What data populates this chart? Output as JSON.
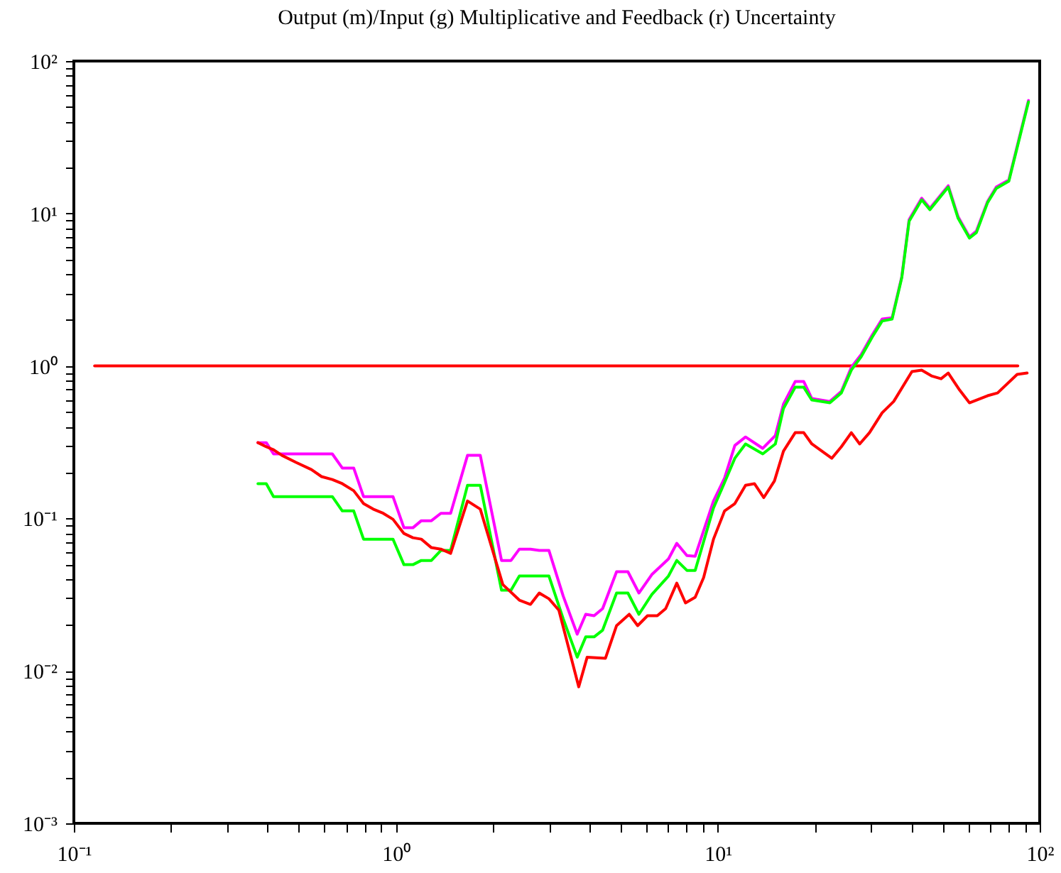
{
  "chart_data": {
    "type": "line",
    "title": "Output (m)/Input (g) Multiplicative and Feedback (r) Uncertainty",
    "log": "xy",
    "grid": false,
    "marker": "none",
    "line_style": "solid",
    "xlim": [
      0.1,
      100
    ],
    "ylim": [
      0.001,
      100
    ],
    "xticks": [
      {
        "value": 0.1,
        "label": "10⁻¹"
      },
      {
        "value": 0.2,
        "label": null
      },
      {
        "value": 0.3,
        "label": null
      },
      {
        "value": 0.4,
        "label": null
      },
      {
        "value": 0.5,
        "label": null
      },
      {
        "value": 0.6,
        "label": null
      },
      {
        "value": 0.7,
        "label": null
      },
      {
        "value": 0.8,
        "label": null
      },
      {
        "value": 0.9,
        "label": null
      },
      {
        "value": 1,
        "label": "10⁰"
      },
      {
        "value": 2,
        "label": null
      },
      {
        "value": 3,
        "label": null
      },
      {
        "value": 4,
        "label": null
      },
      {
        "value": 5,
        "label": null
      },
      {
        "value": 6,
        "label": null
      },
      {
        "value": 7,
        "label": null
      },
      {
        "value": 8,
        "label": null
      },
      {
        "value": 9,
        "label": null
      },
      {
        "value": 10,
        "label": "10¹"
      },
      {
        "value": 20,
        "label": null
      },
      {
        "value": 30,
        "label": null
      },
      {
        "value": 40,
        "label": null
      },
      {
        "value": 50,
        "label": null
      },
      {
        "value": 60,
        "label": null
      },
      {
        "value": 70,
        "label": null
      },
      {
        "value": 80,
        "label": null
      },
      {
        "value": 90,
        "label": null
      },
      {
        "value": 100,
        "label": "10²"
      }
    ],
    "yticks": [
      {
        "value": 0.001,
        "label": "10⁻³"
      },
      {
        "value": 0.002,
        "label": null
      },
      {
        "value": 0.003,
        "label": null
      },
      {
        "value": 0.004,
        "label": null
      },
      {
        "value": 0.005,
        "label": null
      },
      {
        "value": 0.006,
        "label": null
      },
      {
        "value": 0.007,
        "label": null
      },
      {
        "value": 0.008,
        "label": null
      },
      {
        "value": 0.009,
        "label": null
      },
      {
        "value": 0.01,
        "label": "10⁻²"
      },
      {
        "value": 0.02,
        "label": null
      },
      {
        "value": 0.03,
        "label": null
      },
      {
        "value": 0.04,
        "label": null
      },
      {
        "value": 0.05,
        "label": null
      },
      {
        "value": 0.06,
        "label": null
      },
      {
        "value": 0.07,
        "label": null
      },
      {
        "value": 0.08,
        "label": null
      },
      {
        "value": 0.09,
        "label": null
      },
      {
        "value": 0.1,
        "label": "10⁻¹"
      },
      {
        "value": 0.2,
        "label": null
      },
      {
        "value": 0.3,
        "label": null
      },
      {
        "value": 0.4,
        "label": null
      },
      {
        "value": 0.5,
        "label": null
      },
      {
        "value": 0.6,
        "label": null
      },
      {
        "value": 0.7,
        "label": null
      },
      {
        "value": 0.8,
        "label": null
      },
      {
        "value": 0.9,
        "label": null
      },
      {
        "value": 1,
        "label": "10⁰"
      },
      {
        "value": 2,
        "label": null
      },
      {
        "value": 3,
        "label": null
      },
      {
        "value": 4,
        "label": null
      },
      {
        "value": 5,
        "label": null
      },
      {
        "value": 6,
        "label": null
      },
      {
        "value": 7,
        "label": null
      },
      {
        "value": 8,
        "label": null
      },
      {
        "value": 9,
        "label": null
      },
      {
        "value": 10,
        "label": "10¹"
      },
      {
        "value": 20,
        "label": null
      },
      {
        "value": 30,
        "label": null
      },
      {
        "value": 40,
        "label": null
      },
      {
        "value": 50,
        "label": null
      },
      {
        "value": 60,
        "label": null
      },
      {
        "value": 70,
        "label": null
      },
      {
        "value": 80,
        "label": null
      },
      {
        "value": 90,
        "label": null
      },
      {
        "value": 100,
        "label": "10²"
      }
    ],
    "series": [
      {
        "color": "#ff0000",
        "x": [
          0.116,
          85.5
        ],
        "values": [
          1,
          1
        ]
      },
      {
        "color": "#ff00ff",
        "x": [
          0.373,
          0.396,
          0.417,
          0.635,
          0.682,
          0.74,
          0.794,
          0.98,
          1.06,
          1.13,
          1.2,
          1.29,
          1.38,
          1.48,
          1.67,
          1.83,
          2.13,
          2.28,
          2.42,
          2.62,
          2.79,
          2.99,
          3.31,
          3.66,
          3.89,
          4.13,
          4.39,
          4.85,
          5.26,
          5.69,
          6.24,
          7.03,
          7.46,
          8.02,
          8.51,
          9.7,
          10.5,
          11.3,
          12.2,
          13.8,
          15.1,
          16.0,
          17.4,
          18.5,
          19.6,
          22.3,
          24.2,
          26.0,
          27.9,
          30.2,
          32.4,
          34.8,
          37.3,
          39.3,
          43.0,
          45.6,
          52.0,
          55.8,
          60.5,
          63.6,
          68.9,
          73.3,
          80.2,
          92.3
        ],
        "values": [
          0.314,
          0.314,
          0.265,
          0.265,
          0.214,
          0.214,
          0.139,
          0.139,
          0.0868,
          0.0868,
          0.0966,
          0.0966,
          0.108,
          0.108,
          0.259,
          0.259,
          0.053,
          0.053,
          0.0629,
          0.0629,
          0.0616,
          0.0616,
          0.031,
          0.0174,
          0.0235,
          0.023,
          0.0256,
          0.0447,
          0.0447,
          0.0324,
          0.0428,
          0.0542,
          0.0686,
          0.057,
          0.0565,
          0.13,
          0.184,
          0.301,
          0.342,
          0.288,
          0.35,
          0.561,
          0.79,
          0.79,
          0.611,
          0.585,
          0.68,
          0.98,
          1.19,
          1.6,
          2.03,
          2.07,
          3.86,
          9.1,
          12.6,
          10.8,
          15.2,
          9.5,
          7.03,
          7.67,
          12.0,
          14.9,
          16.6,
          55.1
        ]
      },
      {
        "color": "#00ff00",
        "x": [
          0.373,
          0.396,
          0.417,
          0.635,
          0.682,
          0.74,
          0.794,
          0.98,
          1.06,
          1.13,
          1.2,
          1.29,
          1.38,
          1.48,
          1.67,
          1.83,
          2.13,
          2.28,
          2.42,
          2.62,
          2.79,
          2.99,
          3.31,
          3.66,
          3.89,
          4.13,
          4.39,
          4.85,
          5.26,
          5.69,
          6.24,
          7.03,
          7.46,
          8.02,
          8.51,
          9.7,
          10.5,
          11.3,
          12.2,
          13.8,
          15.1,
          16.0,
          17.4,
          18.5,
          19.6,
          22.3,
          24.2,
          26.0,
          27.9,
          30.2,
          32.4,
          34.8,
          37.3,
          39.3,
          43.0,
          45.6,
          52.0,
          55.8,
          60.5,
          63.6,
          68.9,
          73.3,
          80.2,
          92.3
        ],
        "values": [
          0.169,
          0.169,
          0.139,
          0.139,
          0.112,
          0.112,
          0.0731,
          0.0731,
          0.0497,
          0.0497,
          0.053,
          0.053,
          0.0616,
          0.0616,
          0.165,
          0.165,
          0.0338,
          0.0338,
          0.0419,
          0.0419,
          0.0419,
          0.0419,
          0.022,
          0.0123,
          0.0167,
          0.0167,
          0.0185,
          0.0324,
          0.0324,
          0.0235,
          0.0317,
          0.0419,
          0.053,
          0.0456,
          0.0456,
          0.117,
          0.172,
          0.248,
          0.308,
          0.265,
          0.308,
          0.526,
          0.725,
          0.725,
          0.598,
          0.573,
          0.665,
          0.94,
          1.15,
          1.55,
          1.97,
          2.03,
          3.8,
          8.9,
          12.3,
          10.6,
          14.9,
          9.3,
          6.9,
          7.5,
          11.8,
          14.6,
          16.3,
          54.0
        ]
      },
      {
        "color": "#ff0000",
        "x": [
          0.373,
          0.396,
          0.417,
          0.443,
          0.49,
          0.547,
          0.588,
          0.635,
          0.682,
          0.74,
          0.794,
          0.851,
          0.914,
          0.98,
          1.06,
          1.13,
          1.2,
          1.29,
          1.38,
          1.48,
          1.67,
          1.83,
          2.15,
          2.42,
          2.62,
          2.79,
          2.99,
          3.21,
          3.7,
          3.93,
          4.48,
          4.85,
          5.31,
          5.64,
          6.05,
          6.49,
          6.89,
          7.46,
          7.94,
          8.51,
          9.04,
          9.7,
          10.5,
          11.3,
          12.2,
          13.0,
          13.9,
          15.0,
          16.0,
          17.4,
          18.5,
          19.6,
          22.6,
          24.2,
          26.0,
          27.6,
          29.6,
          32.4,
          35.2,
          40.1,
          43.0,
          46.1,
          49.4,
          52.0,
          56.4,
          60.5,
          68.9,
          74.0,
          85.1,
          91.4
        ],
        "values": [
          0.314,
          0.295,
          0.282,
          0.259,
          0.233,
          0.209,
          0.188,
          0.18,
          0.169,
          0.152,
          0.125,
          0.115,
          0.108,
          0.0987,
          0.0796,
          0.0747,
          0.0731,
          0.0643,
          0.0629,
          0.059,
          0.13,
          0.115,
          0.0368,
          0.0291,
          0.0273,
          0.0324,
          0.0297,
          0.025,
          0.00786,
          0.0123,
          0.0121,
          0.0198,
          0.0235,
          0.0198,
          0.023,
          0.023,
          0.0256,
          0.0376,
          0.0279,
          0.0304,
          0.0409,
          0.0731,
          0.112,
          0.125,
          0.165,
          0.169,
          0.137,
          0.176,
          0.276,
          0.365,
          0.365,
          0.308,
          0.248,
          0.295,
          0.365,
          0.308,
          0.365,
          0.493,
          0.585,
          0.918,
          0.938,
          0.861,
          0.824,
          0.899,
          0.695,
          0.573,
          0.638,
          0.665,
          0.88,
          0.899
        ]
      }
    ]
  }
}
